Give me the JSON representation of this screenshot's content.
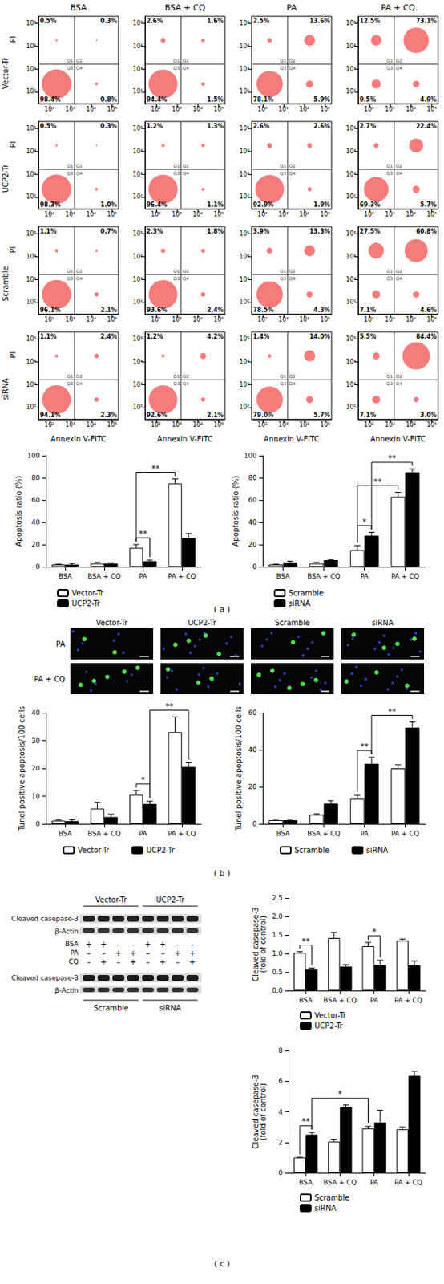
{
  "flow_cytometry": {
    "type": "scatter",
    "columns": [
      "BSA",
      "BSA + CQ",
      "PA",
      "PA + CQ"
    ],
    "y_label": "PI",
    "x_label": "Annexin V-FITC",
    "quadrant_names": [
      "Q1",
      "Q2",
      "Q3",
      "Q4"
    ],
    "log": true,
    "grid": false,
    "color": "#ee1111",
    "xlim": [
      30,
      200000
    ],
    "ylim": [
      30,
      200000
    ],
    "xticks": [
      {
        "value": 100,
        "label": "10²"
      },
      {
        "value": 1000,
        "label": "10³"
      },
      {
        "value": 10000,
        "label": "10⁴"
      },
      {
        "value": 100000,
        "label": "10⁵"
      }
    ],
    "yticks": [
      {
        "value": 100,
        "label": "10²"
      },
      {
        "value": 1000,
        "label": "10³"
      },
      {
        "value": 10000,
        "label": "10⁴"
      },
      {
        "value": 100000,
        "label": "10⁵"
      }
    ],
    "gates": {
      "x": 1600,
      "y": 1600
    },
    "rows": [
      {
        "name": "Vector-Tr",
        "panels": [
          {
            "values": [
              0.5,
              0.3,
              98.4,
              0.8
            ],
            "value_labels": [
              "0.5%",
              "0.3%",
              "98.4%",
              "0.8%"
            ]
          },
          {
            "values": [
              2.6,
              1.6,
              94.4,
              1.5
            ],
            "value_labels": [
              "2.6%",
              "1.6%",
              "94.4%",
              "1.5%"
            ]
          },
          {
            "values": [
              2.5,
              13.6,
              78.1,
              5.9
            ],
            "value_labels": [
              "2.5%",
              "13.6%",
              "78.1%",
              "5.9%"
            ]
          },
          {
            "values": [
              12.5,
              73.1,
              9.5,
              4.9
            ],
            "value_labels": [
              "12.5%",
              "73.1%",
              "9.5%",
              "4.9%"
            ]
          }
        ]
      },
      {
        "name": "UCP2-Tr",
        "panels": [
          {
            "values": [
              0.5,
              0.3,
              98.3,
              1.0
            ],
            "value_labels": [
              "0.5%",
              "0.3%",
              "98.3%",
              "1.0%"
            ]
          },
          {
            "values": [
              1.2,
              1.3,
              96.4,
              1.1
            ],
            "value_labels": [
              "1.2%",
              "1.3%",
              "96.4%",
              "1.1%"
            ]
          },
          {
            "values": [
              2.6,
              2.6,
              92.9,
              1.9
            ],
            "value_labels": [
              "2.6%",
              "2.6%",
              "92.9%",
              "1.9%"
            ]
          },
          {
            "values": [
              2.7,
              22.4,
              69.3,
              5.7
            ],
            "value_labels": [
              "2.7%",
              "22.4%",
              "69.3%",
              "5.7%"
            ]
          }
        ]
      },
      {
        "name": "Scramble",
        "panels": [
          {
            "values": [
              1.1,
              0.7,
              96.1,
              2.1
            ],
            "value_labels": [
              "1.1%",
              "0.7%",
              "96.1%",
              "2.1%"
            ]
          },
          {
            "values": [
              2.3,
              1.8,
              93.6,
              2.4
            ],
            "value_labels": [
              "2.3%",
              "1.8%",
              "93.6%",
              "2.4%"
            ]
          },
          {
            "values": [
              3.9,
              13.3,
              78.5,
              4.3
            ],
            "value_labels": [
              "3.9%",
              "13.3%",
              "78.5%",
              "4.3%"
            ]
          },
          {
            "values": [
              27.5,
              60.8,
              7.1,
              4.6
            ],
            "value_labels": [
              "27.5%",
              "60.8%",
              "7.1%",
              "4.6%"
            ]
          }
        ]
      },
      {
        "name": "siRNA",
        "panels": [
          {
            "values": [
              1.1,
              2.4,
              94.1,
              2.3
            ],
            "value_labels": [
              "1.1%",
              "2.4%",
              "94.1%",
              "2.3%"
            ]
          },
          {
            "values": [
              1.2,
              4.2,
              92.6,
              2.1
            ],
            "value_labels": [
              "1.2%",
              "4.2%",
              "92.6%",
              "2.1%"
            ]
          },
          {
            "values": [
              1.4,
              14.0,
              79.0,
              5.7
            ],
            "value_labels": [
              "1.4%",
              "14.0%",
              "79.0%",
              "5.7%"
            ]
          },
          {
            "values": [
              5.5,
              84.4,
              7.1,
              3.0
            ],
            "value_labels": [
              "5.5%",
              "84.4%",
              "7.1%",
              "3.0%"
            ]
          }
        ]
      }
    ]
  },
  "chart_data": [
    {
      "type": "bar",
      "y_label": "Apoptosis ratio (%)",
      "categories": [
        "BSA",
        "BSA + CQ",
        "PA",
        "PA + CQ"
      ],
      "ylim": [
        0,
        100
      ],
      "yticks": [
        0,
        20,
        40,
        60,
        80,
        100
      ],
      "grid": false,
      "legend": "bottom",
      "series": [
        {
          "name": "Vector-Tr",
          "color": "#ffffff",
          "values": [
            2,
            3,
            17,
            75
          ],
          "errors": [
            0.5,
            1,
            3,
            4
          ]
        },
        {
          "name": "UCP2-Tr",
          "color": "#000000",
          "values": [
            2,
            3,
            5,
            26
          ],
          "errors": [
            1,
            0.5,
            1,
            4
          ]
        }
      ],
      "significance": [
        {
          "from": {
            "category": "PA",
            "series": "Vector-Tr"
          },
          "to": {
            "category": "PA",
            "series": "UCP2-Tr"
          },
          "label": "**"
        },
        {
          "from": {
            "category": "PA",
            "series": "Vector-Tr"
          },
          "to": {
            "category": "PA + CQ",
            "series": "Vector-Tr"
          },
          "label": "**"
        }
      ]
    },
    {
      "type": "bar",
      "y_label": "Apoptosis ratio (%)",
      "categories": [
        "BSA",
        "BSA + CQ",
        "PA",
        "PA + CQ"
      ],
      "ylim": [
        0,
        100
      ],
      "yticks": [
        0,
        20,
        40,
        60,
        80,
        100
      ],
      "grid": false,
      "legend": "bottom",
      "series": [
        {
          "name": "Scramble",
          "color": "#ffffff",
          "values": [
            2,
            3,
            15,
            63
          ],
          "errors": [
            0.5,
            1,
            4,
            4
          ]
        },
        {
          "name": "siRNA",
          "color": "#000000",
          "values": [
            4,
            6,
            28,
            85
          ],
          "errors": [
            1,
            0.5,
            3,
            3
          ]
        }
      ],
      "significance": [
        {
          "from": {
            "category": "PA",
            "series": "Scramble"
          },
          "to": {
            "category": "PA",
            "series": "siRNA"
          },
          "label": "*"
        },
        {
          "from": {
            "category": "PA",
            "series": "Scramble"
          },
          "to": {
            "category": "PA + CQ",
            "series": "Scramble"
          },
          "label": "**"
        },
        {
          "from": {
            "category": "PA",
            "series": "siRNA"
          },
          "to": {
            "category": "PA + CQ",
            "series": "siRNA"
          },
          "label": "**"
        }
      ]
    },
    {
      "type": "bar",
      "y_label": "Tunel positive apoptosis/100 cells",
      "categories": [
        "BSA",
        "BSA + CQ",
        "PA",
        "PA + CQ"
      ],
      "ylim": [
        0,
        40
      ],
      "yticks": [
        0,
        10,
        20,
        30,
        40
      ],
      "grid": false,
      "legend": "bottom",
      "series": [
        {
          "name": "Vector-Tr",
          "color": "#ffffff",
          "values": [
            1.2,
            5.5,
            10.5,
            33
          ],
          "errors": [
            0.2,
            2.3,
            1.5,
            5.5
          ]
        },
        {
          "name": "UCP2-Tr",
          "color": "#000000",
          "values": [
            1,
            2.5,
            7.2,
            20.5
          ],
          "errors": [
            0.5,
            1,
            1,
            1.5
          ]
        }
      ],
      "significance": [
        {
          "from": {
            "category": "PA",
            "series": "Vector-Tr"
          },
          "to": {
            "category": "PA",
            "series": "UCP2-Tr"
          },
          "label": "*"
        },
        {
          "from": {
            "category": "PA",
            "series": "UCP2-Tr"
          },
          "to": {
            "category": "PA + CQ",
            "series": "UCP2-Tr"
          },
          "label": "**"
        }
      ]
    },
    {
      "type": "bar",
      "y_label": "Tunel positive apoptosis/100 cells",
      "categories": [
        "BSA",
        "BSA + CQ",
        "PA",
        "PA + CQ"
      ],
      "ylim": [
        0,
        60
      ],
      "yticks": [
        0,
        20,
        40,
        60
      ],
      "grid": false,
      "legend": "bottom",
      "series": [
        {
          "name": "Scramble",
          "color": "#ffffff",
          "values": [
            2,
            5,
            13.5,
            30
          ],
          "errors": [
            0.5,
            0.5,
            2,
            2
          ]
        },
        {
          "name": "siRNA",
          "color": "#000000",
          "values": [
            2,
            11,
            32.5,
            52
          ],
          "errors": [
            0.5,
            1.5,
            3.5,
            3
          ]
        }
      ],
      "significance": [
        {
          "from": {
            "category": "PA",
            "series": "Scramble"
          },
          "to": {
            "category": "PA",
            "series": "siRNA"
          },
          "label": "**"
        },
        {
          "from": {
            "category": "PA",
            "series": "siRNA"
          },
          "to": {
            "category": "PA + CQ",
            "series": "siRNA"
          },
          "label": "**"
        }
      ]
    },
    {
      "type": "bar",
      "y_label": "Cleaved casepase-3\n(fold of control)",
      "categories": [
        "BSA",
        "BSA + CQ",
        "PA",
        "PA + CQ"
      ],
      "ylim": [
        0,
        2.5
      ],
      "yticks": [
        {
          "value": 0,
          "label": "0.0"
        },
        0.5,
        {
          "value": 1,
          "label": "1.0"
        },
        1.5,
        {
          "value": 2,
          "label": "2.0"
        },
        2.5
      ],
      "grid": false,
      "legend": "bottom",
      "series": [
        {
          "name": "Vector-Tr",
          "color": "#ffffff",
          "values": [
            1.02,
            1.42,
            1.2,
            1.35
          ],
          "errors": [
            0.03,
            0.15,
            0.1,
            0.04
          ]
        },
        {
          "name": "UCP2-Tr",
          "color": "#000000",
          "values": [
            0.57,
            0.65,
            0.7,
            0.68
          ],
          "errors": [
            0.04,
            0.05,
            0.12,
            0.12
          ]
        }
      ],
      "significance": [
        {
          "from": {
            "category": "BSA",
            "series": "Vector-Tr"
          },
          "to": {
            "category": "BSA",
            "series": "UCP2-Tr"
          },
          "label": "**"
        },
        {
          "from": {
            "category": "PA",
            "series": "Vector-Tr"
          },
          "to": {
            "category": "PA",
            "series": "UCP2-Tr"
          },
          "label": "*"
        }
      ]
    },
    {
      "type": "bar",
      "y_label": "Cleaved casepase-3\n(fold of control)",
      "categories": [
        "BSA",
        "BSA + CQ",
        "PA",
        "PA + CQ"
      ],
      "ylim": [
        0,
        8
      ],
      "yticks": [
        0,
        2,
        4,
        6,
        8
      ],
      "grid": false,
      "legend": "bottom",
      "series": [
        {
          "name": "Scramble",
          "color": "#ffffff",
          "values": [
            1,
            2.05,
            2.9,
            2.85
          ],
          "errors": [
            0.02,
            0.15,
            0.15,
            0.15
          ]
        },
        {
          "name": "siRNA",
          "color": "#000000",
          "values": [
            2.5,
            4.3,
            3.3,
            6.35
          ],
          "errors": [
            0.15,
            0.15,
            0.8,
            0.3
          ]
        }
      ],
      "significance": [
        {
          "from": {
            "category": "BSA",
            "series": "Scramble"
          },
          "to": {
            "category": "BSA",
            "series": "siRNA"
          },
          "label": "**"
        },
        {
          "from": {
            "category": "BSA",
            "series": "siRNA"
          },
          "to": {
            "category": "PA",
            "series": "Scramble"
          },
          "label": "*"
        }
      ]
    }
  ],
  "microscopy": {
    "columns": [
      "Vector-Tr",
      "UCP2-Tr",
      "Scramble",
      "siRNA"
    ],
    "rows": [
      "PA",
      "PA + CQ"
    ]
  },
  "western_blot": {
    "groups_top": [
      "Vector-Tr",
      "UCP2-Tr"
    ],
    "bands_top": [
      "Cleaved casepase-3",
      "β-Actin"
    ],
    "treatments": [
      {
        "label": "BSA",
        "signs": [
          "+",
          "+",
          "–",
          "–",
          "+",
          "+",
          "–",
          "–"
        ]
      },
      {
        "label": "PA",
        "signs": [
          "–",
          "–",
          "+",
          "+",
          "–",
          "–",
          "+",
          "+"
        ]
      },
      {
        "label": "CQ",
        "signs": [
          "–",
          "+",
          "–",
          "+",
          "–",
          "+",
          "–",
          "+"
        ]
      }
    ],
    "bands_bottom": [
      "Cleaved casepase-3",
      "β-Actin"
    ],
    "groups_bottom": [
      "Scramble",
      "siRNA"
    ]
  },
  "panel_labels": [
    "( a )",
    "( b )",
    "( c )"
  ]
}
